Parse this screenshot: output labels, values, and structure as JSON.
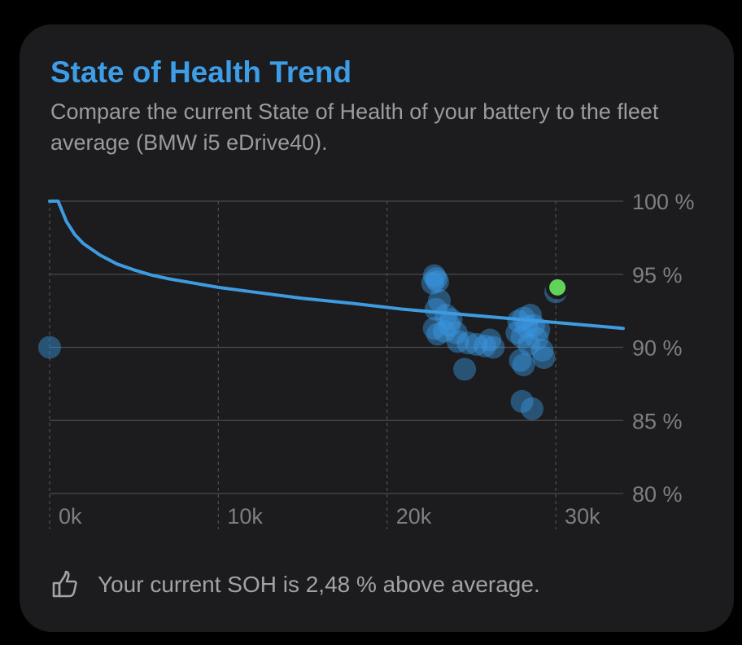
{
  "card": {
    "title": "State of Health Trend",
    "subtitle": "Compare the current State of Health of your battery to the fleet average (BMW i5 eDrive40)."
  },
  "footer": {
    "icon": "thumbs-up-icon",
    "text": "Your current SOH is 2,48 % above average."
  },
  "colors": {
    "title": "#3d9de6",
    "trend_line": "#3f9be0",
    "fleet_points": "#3a96e0",
    "current_point": "#5fd35a",
    "grid": "#4a4a4e",
    "tick_label": "#7e7e83"
  },
  "chart_data": {
    "type": "scatter",
    "xlim": [
      0,
      34000
    ],
    "ylim": [
      80,
      100
    ],
    "x_ticks": [
      0,
      10000,
      20000,
      30000
    ],
    "x_tick_labels": [
      "0k",
      "10k",
      "20k",
      "30k"
    ],
    "y_ticks": [
      100,
      95,
      90,
      85,
      80
    ],
    "y_tick_labels": [
      "100 %",
      "95 %",
      "90 %",
      "85 %",
      "80 %"
    ],
    "grid": true,
    "trend_line": {
      "x": [
        0,
        500,
        750,
        1000,
        1500,
        2000,
        3000,
        4000,
        5000,
        6000,
        7000,
        8000,
        10000,
        12000,
        15000,
        18000,
        21000,
        24000,
        27000,
        30000,
        33000,
        34000
      ],
      "y": [
        100,
        100,
        99.3,
        98.6,
        97.7,
        97.1,
        96.3,
        95.7,
        95.3,
        94.95,
        94.7,
        94.5,
        94.1,
        93.8,
        93.35,
        93.0,
        92.6,
        92.3,
        92.0,
        91.7,
        91.4,
        91.3
      ]
    },
    "fleet_points": {
      "x": [
        0,
        22800,
        22900,
        22700,
        23000,
        23100,
        22900,
        23500,
        23800,
        22800,
        23000,
        23400,
        23700,
        24200,
        24800,
        25300,
        25800,
        26300,
        26100,
        27700,
        28000,
        28300,
        27800,
        28100,
        28500,
        28700,
        29000,
        28900,
        28400,
        29200,
        29300,
        27900,
        28100,
        28000,
        28600,
        30000,
        24600,
        24100
      ],
      "y": [
        90.0,
        94.9,
        94.7,
        94.4,
        94.5,
        93.2,
        92.6,
        92.2,
        91.9,
        91.3,
        90.9,
        91.1,
        91.5,
        90.4,
        90.3,
        90.2,
        90.1,
        90.0,
        90.5,
        91.0,
        90.7,
        91.4,
        91.8,
        92.0,
        92.2,
        91.5,
        91.2,
        90.6,
        90.2,
        89.8,
        89.3,
        89.1,
        88.8,
        86.3,
        85.8,
        93.8,
        88.5,
        91.0
      ]
    },
    "current_point": {
      "x": 30100,
      "y": 94.1
    }
  }
}
